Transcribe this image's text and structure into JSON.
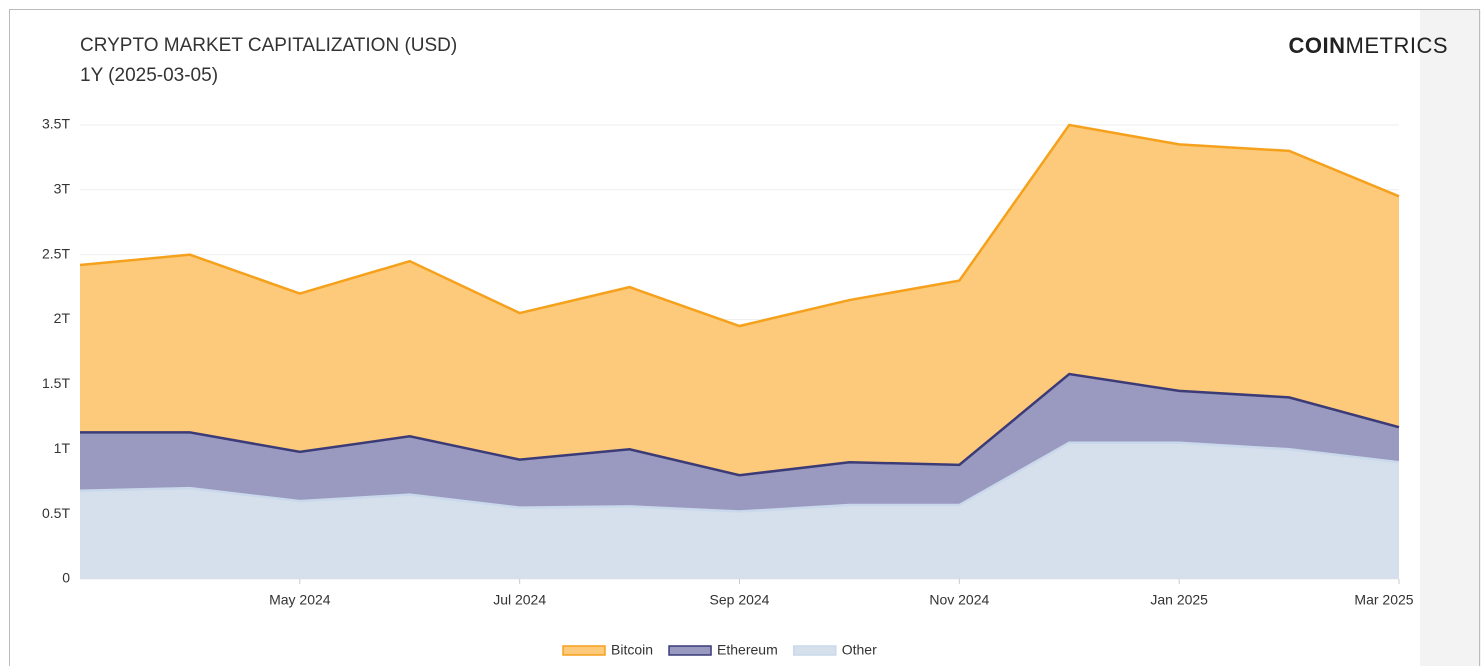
{
  "chart_data": {
    "type": "stacked-area",
    "title": "CRYPTO MARKET CAPITALIZATION (USD)",
    "subtitle": "1Y (2025-03-05)",
    "brand_bold": "COIN",
    "brand": "METRICS",
    "x": [
      "2024-03",
      "2024-04",
      "2024-05",
      "2024-06",
      "2024-07",
      "2024-08",
      "2024-09",
      "2024-10",
      "2024-11",
      "2024-12",
      "2025-01",
      "2025-02",
      "2025-03"
    ],
    "xlim": [
      "2024-03",
      "2025-03"
    ],
    "xticks": [
      {
        "value": "2024-05",
        "label": "May 2024"
      },
      {
        "value": "2024-07",
        "label": "Jul 2024"
      },
      {
        "value": "2024-09",
        "label": "Sep 2024"
      },
      {
        "value": "2024-11",
        "label": "Nov 2024"
      },
      {
        "value": "2025-01",
        "label": "Jan 2025"
      },
      {
        "value": "2025-03",
        "label": "Mar 2025"
      }
    ],
    "ylim": [
      0,
      3.7
    ],
    "yticks": [
      0,
      {
        "value": 0.5,
        "label": "0.5T"
      },
      {
        "value": 1,
        "label": "1T"
      },
      {
        "value": 1.5,
        "label": "1.5T"
      },
      {
        "value": 2,
        "label": "2T"
      },
      {
        "value": 2.5,
        "label": "2.5T"
      },
      {
        "value": 3,
        "label": "3T"
      },
      {
        "value": 3.5,
        "label": "3.5T"
      }
    ],
    "grid": true,
    "legend": "bottom",
    "series": [
      {
        "name": "Other",
        "color": "#c9d8ea",
        "fill": "#d6e0ec",
        "values": [
          0.68,
          0.7,
          0.6,
          0.65,
          0.55,
          0.56,
          0.52,
          0.57,
          0.57,
          1.05,
          1.05,
          1.0,
          0.9
        ]
      },
      {
        "name": "Ethereum",
        "color": "#3b3b78",
        "fill": "#9a9ac0",
        "values": [
          0.45,
          0.43,
          0.38,
          0.45,
          0.37,
          0.44,
          0.28,
          0.33,
          0.31,
          0.53,
          0.4,
          0.4,
          0.27
        ]
      },
      {
        "name": "Bitcoin",
        "color": "#f5a11c",
        "fill": "#fdc97b",
        "values": [
          1.29,
          1.37,
          1.22,
          1.35,
          1.13,
          1.25,
          1.15,
          1.25,
          1.42,
          1.92,
          1.9,
          1.9,
          1.78
        ]
      }
    ],
    "legend_order": [
      "Bitcoin",
      "Ethereum",
      "Other"
    ]
  }
}
